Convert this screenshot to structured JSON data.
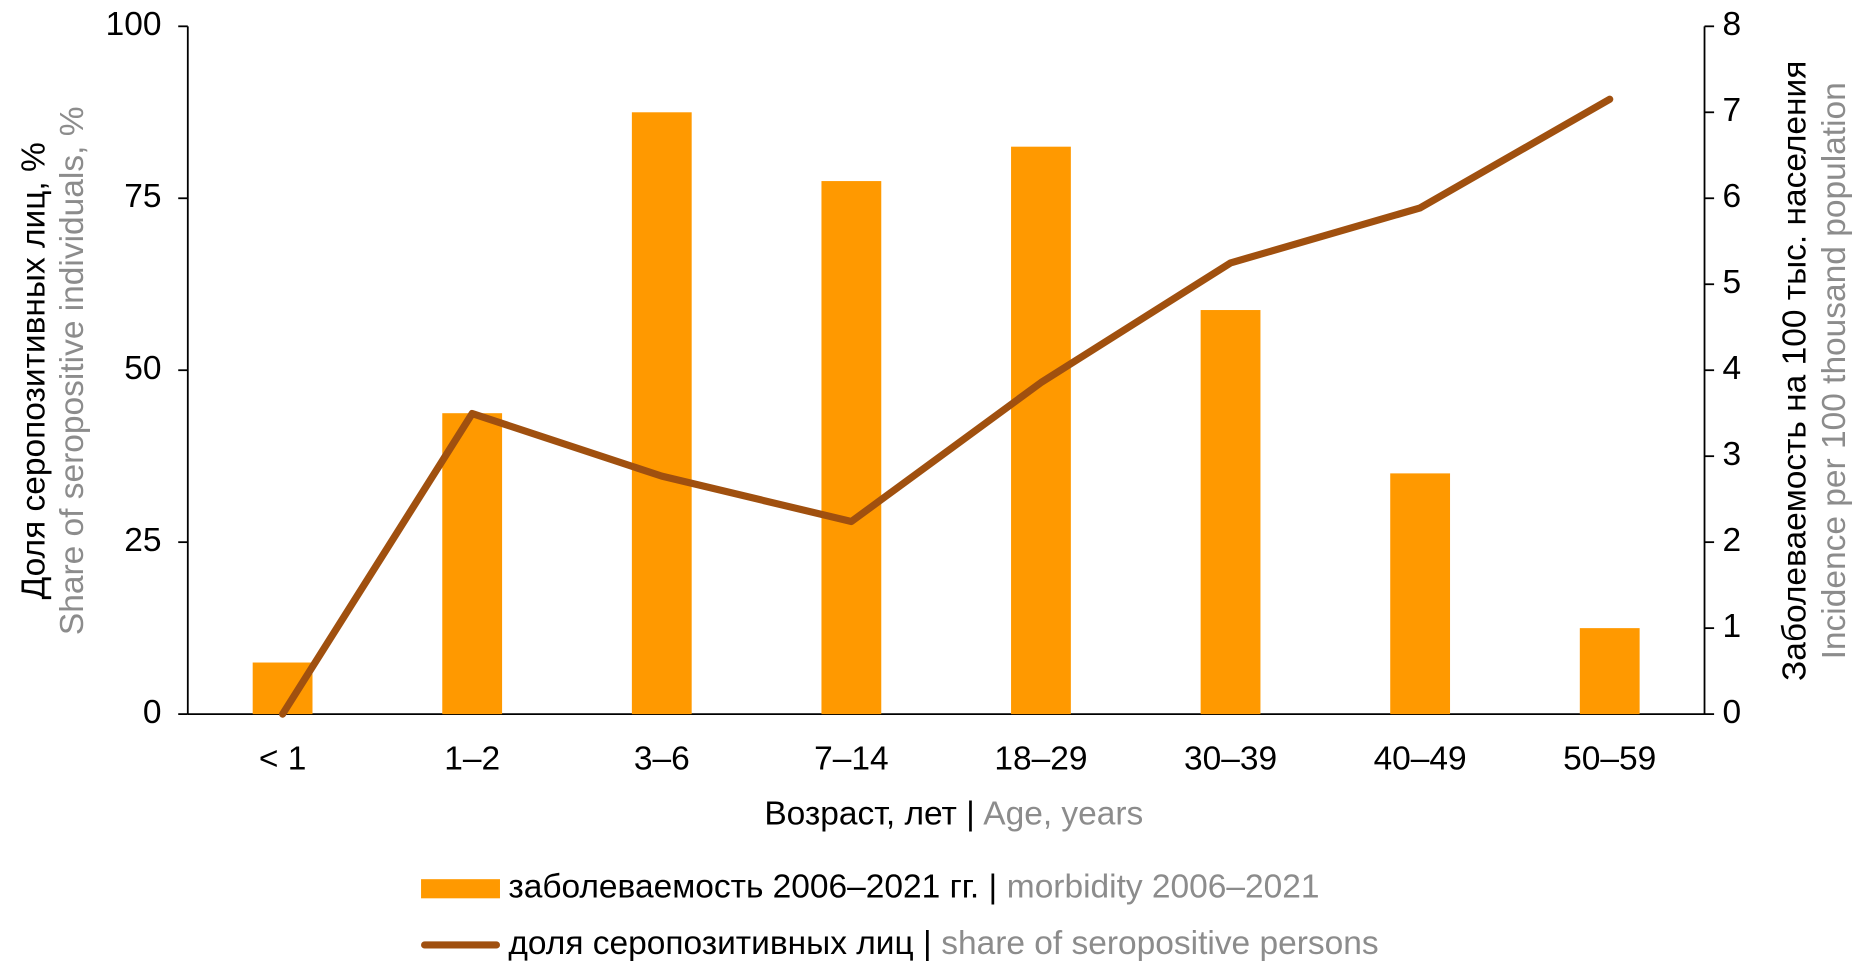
{
  "chart_data": {
    "type": "bar-line",
    "categories": [
      "< 1",
      "1–2",
      "3–6",
      "7–14",
      "18–29",
      "30–39",
      "40–49",
      "50–59"
    ],
    "series": [
      {
        "name": "заболеваемость 2006–2021 гг. |",
        "name_en": "morbidity 2006–2021",
        "type": "bar",
        "axis": "y2",
        "color": "#ff9900",
        "values": [
          0.6,
          3.5,
          7.0,
          6.2,
          6.6,
          4.7,
          2.8,
          1.0
        ]
      },
      {
        "name": "доля серопозитивных лиц |",
        "name_en": "share of seropositive persons",
        "type": "line",
        "axis": "y",
        "color": "#a0500f",
        "values": [
          0,
          43.7,
          34.6,
          28,
          48.2,
          65.6,
          73.6,
          89.4
        ]
      }
    ],
    "ylabel": "Доля серопозитивных лиц, %",
    "ylabel_en": "Share of seropositive individuals, %",
    "y2label": "Заболеваемость на 100 тыс. населения",
    "y2label_en": "Incidence per 100 thousand population",
    "xlabel": "Возраст, лет |",
    "xlabel_en": "Age, years",
    "ylim": [
      0,
      100
    ],
    "yticks": [
      0,
      25,
      50,
      75,
      100
    ],
    "y2lim": [
      0,
      8
    ],
    "y2ticks": [
      0,
      1,
      2,
      3,
      4,
      5,
      6,
      7,
      8
    ],
    "grid": false
  }
}
